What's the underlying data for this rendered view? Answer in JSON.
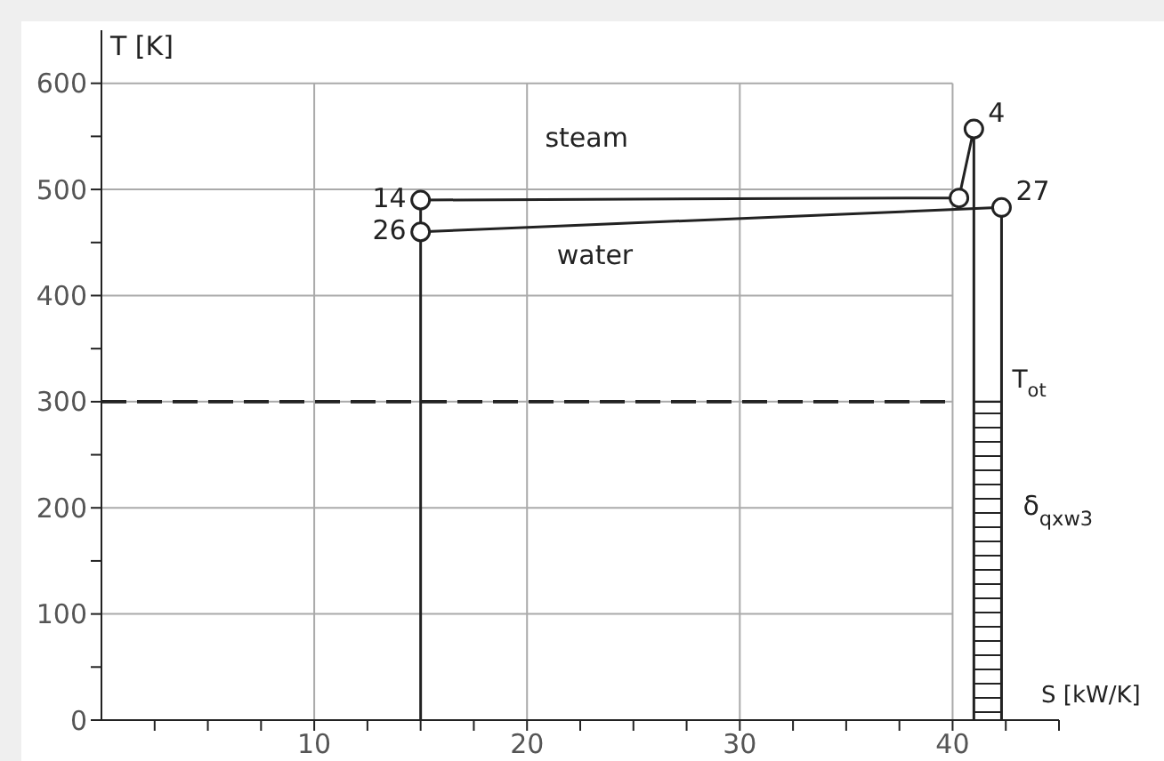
{
  "chart_data": {
    "type": "line",
    "ylabel": "T [K]",
    "xlabel": "S [kW/K]",
    "xlim": [
      0,
      45
    ],
    "ylim": [
      0,
      650
    ],
    "xticks": [
      {
        "value": 2.5,
        "label": null
      },
      {
        "value": 5,
        "label": null
      },
      {
        "value": 7.5,
        "label": null
      },
      10,
      {
        "value": 12.5,
        "label": null
      },
      {
        "value": 15,
        "label": null
      },
      {
        "value": 17.5,
        "label": null
      },
      20,
      {
        "value": 22.5,
        "label": null
      },
      {
        "value": 25,
        "label": null
      },
      {
        "value": 27.5,
        "label": null
      },
      30,
      {
        "value": 32.5,
        "label": null
      },
      {
        "value": 35,
        "label": null
      },
      {
        "value": 37.5,
        "label": null
      },
      40,
      {
        "value": 42.5,
        "label": null
      },
      {
        "value": 45,
        "label": null
      }
    ],
    "yticks": [
      0,
      {
        "value": 50,
        "label": null
      },
      100,
      {
        "value": 150,
        "label": null
      },
      200,
      {
        "value": 250,
        "label": null
      },
      300,
      {
        "value": 350,
        "label": null
      },
      400,
      {
        "value": 450,
        "label": null
      },
      500,
      {
        "value": 550,
        "label": null
      },
      600
    ],
    "grid": true,
    "series": [
      {
        "name": "steam",
        "color": "#222222",
        "marker": "circle",
        "x": [
          15,
          40.3,
          41
        ],
        "values": [
          490,
          492,
          557
        ]
      },
      {
        "name": "water",
        "color": "#222222",
        "marker": "circle",
        "x": [
          15,
          42.3
        ],
        "values": [
          460,
          483
        ]
      },
      {
        "color": "#222222",
        "marker": "none",
        "x": [
          15,
          15
        ],
        "values": [
          0,
          490
        ]
      },
      {
        "color": "#222222",
        "marker": "none",
        "x": [
          41,
          41
        ],
        "values": [
          0,
          557
        ]
      },
      {
        "color": "#222222",
        "marker": "none",
        "x": [
          42.3,
          42.3
        ],
        "values": [
          0,
          483
        ]
      },
      {
        "type": "area",
        "name": "δ$_{qxw3}$",
        "color": "#222222",
        "x": [
          41,
          42.3
        ],
        "values": [
          300,
          300
        ]
      }
    ],
    "ref_lines": [
      {
        "axis": "y",
        "value": 300,
        "label": "T$_{ot}$",
        "line_style": "dashed",
        "color": "#222222"
      }
    ],
    "annotations": [
      {
        "text": "4",
        "x": 41,
        "y": 557
      },
      {
        "text": "14",
        "x": 15,
        "y": 490
      },
      {
        "text": "26",
        "x": 15,
        "y": 460
      },
      {
        "text": "27",
        "x": 42.3,
        "y": 483
      }
    ]
  }
}
